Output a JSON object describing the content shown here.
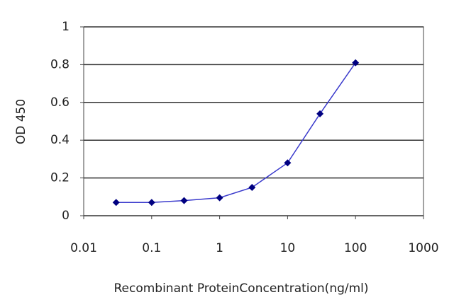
{
  "chart_data": {
    "type": "line",
    "x_label": "Recombinant ProteinConcentration(ng/ml)",
    "y_label": "OD 450",
    "x_scale": "log",
    "xlim": [
      0.01,
      1000
    ],
    "xticks": [
      0.01,
      0.1,
      1,
      10,
      100,
      1000
    ],
    "ylim": [
      0,
      1
    ],
    "yticks": [
      0,
      0.2,
      0.4,
      0.6,
      0.8,
      1
    ],
    "grid": true,
    "x": [
      0.03,
      0.1,
      0.3,
      1,
      3,
      10,
      30,
      100
    ],
    "values": [
      0.07,
      0.07,
      0.08,
      0.095,
      0.15,
      0.28,
      0.54,
      0.81
    ],
    "color": "#3a3acc",
    "marker_color": "#000080"
  }
}
